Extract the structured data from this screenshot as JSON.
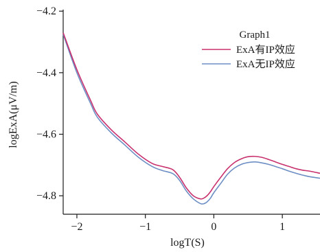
{
  "chart_data": {
    "type": "line",
    "xlabel": "logT(S)",
    "ylabel": "logExA(μV/m)",
    "xlim": [
      -2.2,
      1.55
    ],
    "ylim": [
      -4.86,
      -4.195
    ],
    "xticks": [
      -2,
      -1,
      0,
      1
    ],
    "xtick_labels": [
      "−2",
      "−1",
      "0",
      "1"
    ],
    "yticks": [
      -4.2,
      -4.4,
      -4.6,
      -4.8
    ],
    "ytick_labels": [
      "−4.2",
      "−4.4",
      "−4.6",
      "−4.8"
    ],
    "legend": {
      "title": "Graph1",
      "placement": "top-right"
    },
    "series": [
      {
        "name": "ExA有IP效应",
        "color": "#c8306e",
        "x": [
          -2.2,
          -2.0,
          -1.8,
          -1.7,
          -1.5,
          -1.3,
          -1.1,
          -0.9,
          -0.75,
          -0.6,
          -0.5,
          -0.4,
          -0.3,
          -0.2,
          -0.15,
          -0.1,
          -0.05,
          0.0,
          0.1,
          0.2,
          0.3,
          0.4,
          0.5,
          0.6,
          0.7,
          0.8,
          0.9,
          1.0,
          1.1,
          1.2,
          1.3,
          1.4,
          1.55
        ],
        "y": [
          -4.27,
          -4.39,
          -4.49,
          -4.535,
          -4.585,
          -4.625,
          -4.665,
          -4.695,
          -4.705,
          -4.715,
          -4.74,
          -4.775,
          -4.8,
          -4.81,
          -4.808,
          -4.8,
          -4.787,
          -4.77,
          -4.74,
          -4.712,
          -4.692,
          -4.68,
          -4.673,
          -4.672,
          -4.675,
          -4.682,
          -4.69,
          -4.698,
          -4.705,
          -4.712,
          -4.717,
          -4.72,
          -4.727
        ]
      },
      {
        "name": "ExA无IP效应",
        "color": "#6d8ec4",
        "x": [
          -2.2,
          -2.0,
          -1.8,
          -1.7,
          -1.5,
          -1.3,
          -1.1,
          -0.9,
          -0.75,
          -0.6,
          -0.5,
          -0.4,
          -0.3,
          -0.2,
          -0.15,
          -0.1,
          -0.05,
          0.0,
          0.1,
          0.2,
          0.3,
          0.4,
          0.5,
          0.6,
          0.7,
          0.8,
          0.9,
          1.0,
          1.1,
          1.2,
          1.3,
          1.4,
          1.55
        ],
        "y": [
          -4.275,
          -4.4,
          -4.5,
          -4.545,
          -4.595,
          -4.635,
          -4.675,
          -4.705,
          -4.718,
          -4.728,
          -4.75,
          -4.785,
          -4.81,
          -4.825,
          -4.826,
          -4.82,
          -4.808,
          -4.79,
          -4.76,
          -4.73,
          -4.71,
          -4.698,
          -4.692,
          -4.69,
          -4.693,
          -4.698,
          -4.705,
          -4.712,
          -4.72,
          -4.727,
          -4.733,
          -4.738,
          -4.743
        ]
      }
    ]
  }
}
